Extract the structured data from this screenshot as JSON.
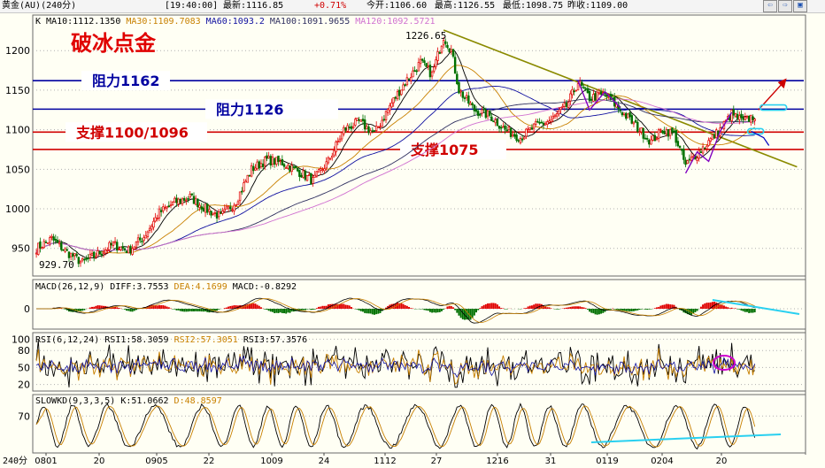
{
  "header": {
    "instrument": "黄金(AU)(240分)",
    "time": "[19:40:00]",
    "latest": "最新:1116.85",
    "change": "+0.71%",
    "open": "今开:1106.60",
    "high": "最高:1126.55",
    "low": "最低:1098.75",
    "prev_close": "昨收:1109.00"
  },
  "nav": {
    "left_icon": "arrow-left-icon",
    "right_icon": "arrow-right-icon",
    "zoom_icon": "zoom-icon"
  },
  "colors": {
    "bg": "#fffff4",
    "up": "#e00000",
    "down": "#007000",
    "ma10": "#000000",
    "ma30": "#c88000",
    "ma60": "#1010a0",
    "ma100": "#303060",
    "ma120": "#d070d0",
    "resistance": "#0000a0",
    "support": "#d00000",
    "trend": "#8a8a00",
    "annot_red": "#cc0000",
    "annot_cyan": "#29d0f0",
    "annot_magenta": "#d000d0",
    "annot_purple": "#8000c0"
  },
  "chart_data": [
    {
      "type": "candlestick",
      "panel": "main",
      "title": "破冰点金",
      "indicator_line": {
        "label": "K",
        "items": [
          "MA10:1112.1350",
          "MA30:1109.7083",
          "MA60:1093.2",
          "MA100:1091.9655",
          "MA120:1092.5721"
        ]
      },
      "ylim": [
        915,
        1245
      ],
      "y_ticks": [
        950,
        1000,
        1050,
        1100,
        1150,
        1200
      ],
      "x_ticks": [
        "0801",
        "20",
        "0905",
        "22",
        "1009",
        "24",
        "1112",
        "27",
        "1216",
        "31",
        "0119",
        "0204",
        "20"
      ],
      "x_unit": "240分",
      "high_label": "1226.65",
      "low_label": "929.70",
      "anchors": [
        {
          "bar": 0,
          "price": 950
        },
        {
          "bar": 8,
          "price": 962
        },
        {
          "bar": 16,
          "price": 945
        },
        {
          "bar": 24,
          "price": 932
        },
        {
          "bar": 32,
          "price": 943
        },
        {
          "bar": 40,
          "price": 955
        },
        {
          "bar": 48,
          "price": 947
        },
        {
          "bar": 56,
          "price": 965
        },
        {
          "bar": 64,
          "price": 995
        },
        {
          "bar": 72,
          "price": 1008
        },
        {
          "bar": 80,
          "price": 1015
        },
        {
          "bar": 88,
          "price": 1000
        },
        {
          "bar": 96,
          "price": 990
        },
        {
          "bar": 104,
          "price": 1010
        },
        {
          "bar": 112,
          "price": 1050
        },
        {
          "bar": 120,
          "price": 1062
        },
        {
          "bar": 128,
          "price": 1058
        },
        {
          "bar": 136,
          "price": 1048
        },
        {
          "bar": 144,
          "price": 1035
        },
        {
          "bar": 152,
          "price": 1060
        },
        {
          "bar": 160,
          "price": 1100
        },
        {
          "bar": 168,
          "price": 1110
        },
        {
          "bar": 176,
          "price": 1095
        },
        {
          "bar": 184,
          "price": 1130
        },
        {
          "bar": 192,
          "price": 1160
        },
        {
          "bar": 200,
          "price": 1185
        },
        {
          "bar": 206,
          "price": 1170
        },
        {
          "bar": 212,
          "price": 1218
        },
        {
          "bar": 216,
          "price": 1200
        },
        {
          "bar": 220,
          "price": 1150
        },
        {
          "bar": 228,
          "price": 1125
        },
        {
          "bar": 236,
          "price": 1118
        },
        {
          "bar": 244,
          "price": 1100
        },
        {
          "bar": 252,
          "price": 1090
        },
        {
          "bar": 260,
          "price": 1105
        },
        {
          "bar": 268,
          "price": 1112
        },
        {
          "bar": 276,
          "price": 1130
        },
        {
          "bar": 282,
          "price": 1160
        },
        {
          "bar": 288,
          "price": 1140
        },
        {
          "bar": 296,
          "price": 1145
        },
        {
          "bar": 304,
          "price": 1125
        },
        {
          "bar": 312,
          "price": 1105
        },
        {
          "bar": 320,
          "price": 1085
        },
        {
          "bar": 326,
          "price": 1100
        },
        {
          "bar": 332,
          "price": 1095
        },
        {
          "bar": 338,
          "price": 1055
        },
        {
          "bar": 344,
          "price": 1070
        },
        {
          "bar": 350,
          "price": 1085
        },
        {
          "bar": 356,
          "price": 1100
        },
        {
          "bar": 362,
          "price": 1120
        },
        {
          "bar": 368,
          "price": 1110
        },
        {
          "bar": 374,
          "price": 1118
        }
      ],
      "levels": [
        {
          "label": "阻力1162",
          "price": 1162,
          "kind": "resistance"
        },
        {
          "label": "阻力1126",
          "price": 1126,
          "kind": "resistance"
        },
        {
          "label": "支撑1100/1096",
          "price": 1097,
          "kind": "support"
        },
        {
          "label": "支撑1075",
          "price": 1075,
          "kind": "support"
        }
      ],
      "trendline": {
        "from": {
          "bar": 212,
          "price": 1226
        },
        "to": {
          "bar": 396,
          "price": 1053
        }
      }
    },
    {
      "type": "bar",
      "panel": "macd",
      "indicator_line": {
        "label": "MACD(26,12,9)",
        "items": [
          "DIFF:3.7553",
          "DEA:4.1699",
          "MACD:-0.8292"
        ]
      },
      "y_ticks": [
        0
      ]
    },
    {
      "type": "line",
      "panel": "rsi",
      "indicator_line": {
        "label": "RSI(6,12,24)",
        "items": [
          "RSI1:58.3059",
          "RSI2:57.3051",
          "RSI3:57.3576"
        ]
      },
      "ylim": [
        10,
        110
      ],
      "y_ticks": [
        100,
        80,
        50,
        20
      ]
    },
    {
      "type": "line",
      "panel": "slowkd",
      "indicator_line": {
        "label": "SLOWKD(9,3,3,5)",
        "items": [
          "K:51.0662",
          "D:48.8597"
        ]
      },
      "ylim": [
        0,
        110
      ],
      "y_ticks": [
        70
      ]
    }
  ]
}
